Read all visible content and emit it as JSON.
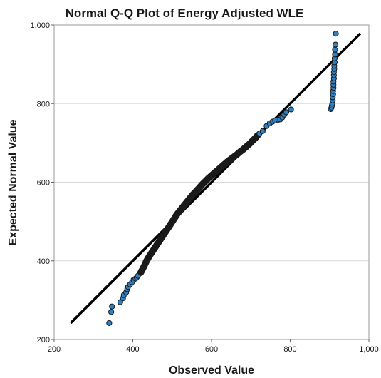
{
  "chart_data": {
    "type": "scatter",
    "title": "Normal Q-Q Plot of Energy Adjusted WLE",
    "xlabel": "Observed Value",
    "ylabel": "Expected Normal Value",
    "xlim": [
      200,
      1000
    ],
    "ylim": [
      200,
      1000
    ],
    "x_ticks": [
      "200",
      "400",
      "600",
      "800",
      "1,000"
    ],
    "y_ticks": [
      "200",
      "400",
      "600",
      "800",
      "1,000"
    ],
    "grid": "horizontal",
    "legend": "none",
    "point_color": "#2f7fc1",
    "dense_point_color": "#1a1a1a",
    "reference_line": {
      "x": [
        242,
        978
      ],
      "y": [
        242,
        978
      ]
    },
    "points": [
      [
        340,
        242
      ],
      [
        345,
        270
      ],
      [
        347,
        284
      ],
      [
        368,
        295
      ],
      [
        375,
        305
      ],
      [
        377,
        313
      ],
      [
        383,
        320
      ],
      [
        386,
        328
      ],
      [
        388,
        334
      ],
      [
        393,
        340
      ],
      [
        398,
        346
      ],
      [
        402,
        352
      ],
      [
        407,
        355
      ],
      [
        410,
        358
      ],
      [
        413,
        362
      ],
      [
        420,
        370
      ],
      [
        428,
        385
      ],
      [
        435,
        400
      ],
      [
        442,
        412
      ],
      [
        450,
        424
      ],
      [
        458,
        436
      ],
      [
        466,
        448
      ],
      [
        474,
        460
      ],
      [
        482,
        472
      ],
      [
        490,
        484
      ],
      [
        498,
        496
      ],
      [
        505,
        507
      ],
      [
        512,
        518
      ],
      [
        520,
        528
      ],
      [
        528,
        538
      ],
      [
        536,
        548
      ],
      [
        544,
        558
      ],
      [
        552,
        568
      ],
      [
        560,
        576
      ],
      [
        568,
        585
      ],
      [
        576,
        594
      ],
      [
        584,
        602
      ],
      [
        592,
        610
      ],
      [
        600,
        617
      ],
      [
        608,
        624
      ],
      [
        616,
        631
      ],
      [
        624,
        638
      ],
      [
        632,
        645
      ],
      [
        640,
        652
      ],
      [
        648,
        658
      ],
      [
        656,
        664
      ],
      [
        664,
        670
      ],
      [
        672,
        677
      ],
      [
        680,
        683
      ],
      [
        688,
        690
      ],
      [
        696,
        697
      ],
      [
        704,
        705
      ],
      [
        712,
        713
      ],
      [
        718,
        720
      ],
      [
        722,
        724
      ],
      [
        730,
        730
      ],
      [
        740,
        743
      ],
      [
        748,
        750
      ],
      [
        755,
        754
      ],
      [
        762,
        757
      ],
      [
        770,
        759
      ],
      [
        775,
        760
      ],
      [
        780,
        765
      ],
      [
        785,
        772
      ],
      [
        790,
        778
      ],
      [
        802,
        785
      ],
      [
        903,
        786
      ],
      [
        905,
        790
      ],
      [
        906,
        795
      ],
      [
        907,
        800
      ],
      [
        908,
        808
      ],
      [
        908,
        816
      ],
      [
        909,
        824
      ],
      [
        909,
        832
      ],
      [
        910,
        840
      ],
      [
        910,
        848
      ],
      [
        910,
        856
      ],
      [
        911,
        864
      ],
      [
        911,
        872
      ],
      [
        911,
        880
      ],
      [
        912,
        888
      ],
      [
        912,
        896
      ],
      [
        913,
        905
      ],
      [
        913,
        915
      ],
      [
        914,
        925
      ],
      [
        914,
        937
      ],
      [
        915,
        950
      ],
      [
        916,
        978
      ]
    ]
  }
}
